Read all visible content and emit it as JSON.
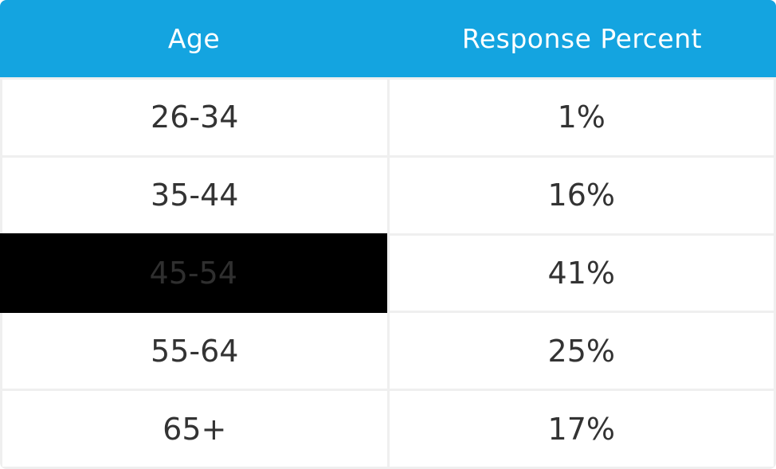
{
  "table": {
    "columns": [
      {
        "label": "Age"
      },
      {
        "label": "Response Percent"
      }
    ],
    "rows": [
      {
        "age": "26-34",
        "percent": "1%",
        "highlight": false
      },
      {
        "age": "35-44",
        "percent": "16%",
        "highlight": false
      },
      {
        "age": "45-54",
        "percent": "41%",
        "highlight": true
      },
      {
        "age": "55-64",
        "percent": "25%",
        "highlight": false
      },
      {
        "age": "65+",
        "percent": "17%",
        "highlight": false
      }
    ]
  },
  "chart_data": {
    "type": "table",
    "title": "",
    "columns": [
      "Age",
      "Response Percent"
    ],
    "categories": [
      "26-34",
      "35-44",
      "45-54",
      "55-64",
      "65+"
    ],
    "values": [
      1,
      16,
      41,
      25,
      17
    ],
    "units": "%",
    "highlighted_category": "45-54",
    "notes": "45-54 age cell is blacked out (redacted highlight) with faint dark-gray label"
  },
  "colors": {
    "header_bg": "#14a4e0",
    "header_text": "#ffffff",
    "cell_bg": "#ffffff",
    "grid": "#efefef",
    "text": "#333333",
    "highlight_bg": "#000000",
    "highlight_text": "#2f2f2f"
  }
}
